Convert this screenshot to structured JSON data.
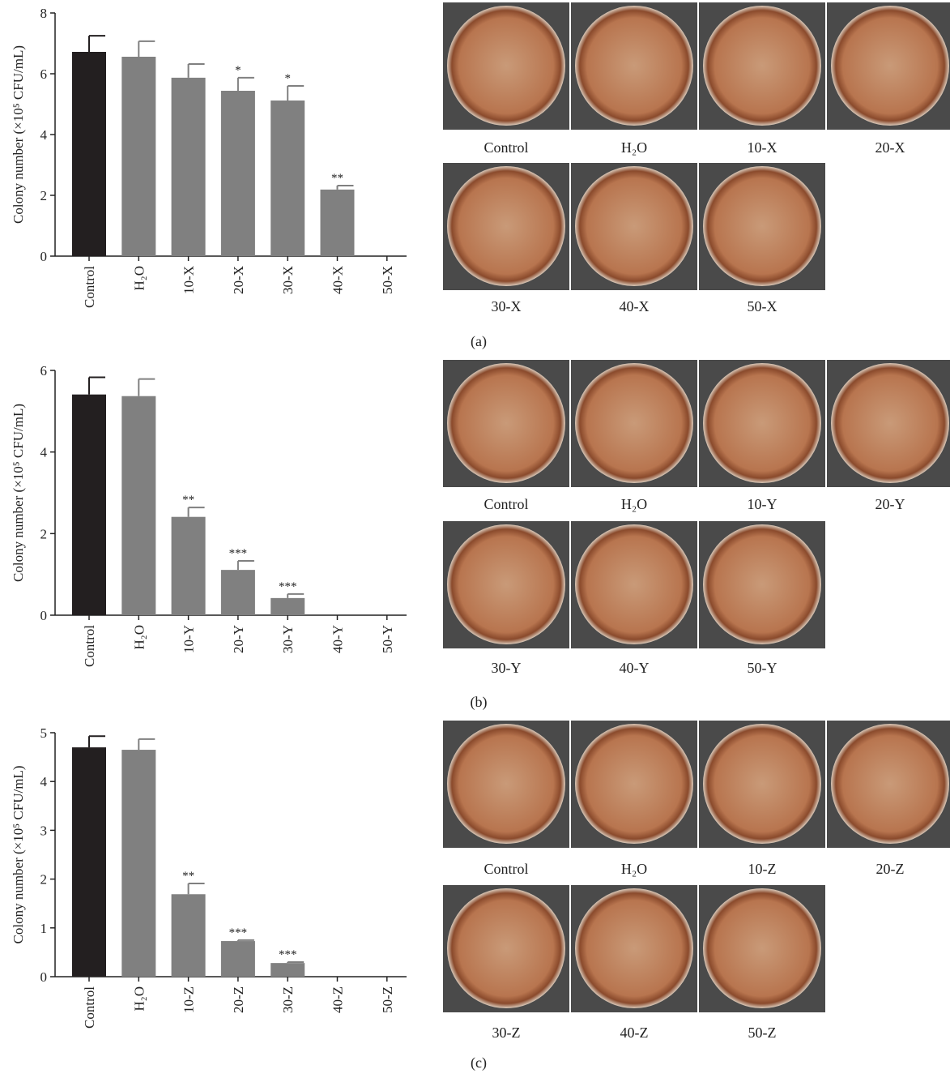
{
  "chart_data": [
    {
      "type": "bar",
      "ylabel": "Colony number (×10⁵ CFU/mL)",
      "categories": [
        "Control",
        "H₂O",
        "10-X",
        "20-X",
        "30-X",
        "40-X",
        "50-X"
      ],
      "values": [
        6.72,
        6.56,
        5.87,
        5.44,
        5.12,
        2.19,
        0
      ],
      "errors": [
        0.53,
        0.51,
        0.45,
        0.43,
        0.48,
        0.13,
        null
      ],
      "annotations": [
        null,
        null,
        null,
        "*",
        "*",
        "**",
        null
      ],
      "colors": [
        "#231f20",
        "#808080",
        "#808080",
        "#808080",
        "#808080",
        "#808080",
        "#808080"
      ],
      "ylim": [
        0,
        8
      ],
      "yticks": [
        0,
        2,
        4,
        6,
        8
      ]
    },
    {
      "type": "bar",
      "ylabel": "Colony number (×10⁵ CFU/mL)",
      "categories": [
        "Control",
        "H₂O",
        "10-Y",
        "20-Y",
        "30-Y",
        "40-Y",
        "50-Y"
      ],
      "values": [
        5.41,
        5.37,
        2.41,
        1.11,
        0.42,
        0,
        0
      ],
      "errors": [
        0.42,
        0.42,
        0.23,
        0.22,
        0.1,
        null,
        null
      ],
      "annotations": [
        null,
        null,
        "**",
        "***",
        "***",
        null,
        null
      ],
      "colors": [
        "#231f20",
        "#808080",
        "#808080",
        "#808080",
        "#808080",
        "#808080",
        "#808080"
      ],
      "ylim": [
        0,
        6
      ],
      "yticks": [
        0,
        2,
        4,
        6
      ]
    },
    {
      "type": "bar",
      "ylabel": "Colony number (×10⁵ CFU/mL)",
      "categories": [
        "Control",
        "H₂O",
        "10-Z",
        "20-Z",
        "30-Z",
        "40-Z",
        "50-Z"
      ],
      "values": [
        4.7,
        4.65,
        1.69,
        0.73,
        0.28,
        0,
        0
      ],
      "errors": [
        0.23,
        0.22,
        0.22,
        0.02,
        0.02,
        null,
        null
      ],
      "annotations": [
        null,
        null,
        "**",
        "***",
        "***",
        null,
        null
      ],
      "colors": [
        "#231f20",
        "#808080",
        "#808080",
        "#808080",
        "#808080",
        "#808080",
        "#808080"
      ],
      "ylim": [
        0,
        5
      ],
      "yticks": [
        0,
        1,
        2,
        3,
        4,
        5
      ]
    }
  ],
  "photo_panels": [
    {
      "label": "(a)",
      "captions": [
        "Control",
        "H₂O",
        "10-X",
        "20-X",
        "30-X",
        "40-X",
        "50-X"
      ]
    },
    {
      "label": "(b)",
      "captions": [
        "Control",
        "H₂O",
        "10-Y",
        "20-Y",
        "30-Y",
        "40-Y",
        "50-Y"
      ]
    },
    {
      "label": "(c)",
      "captions": [
        "Control",
        "H₂O",
        "10-Z",
        "20-Z",
        "30-Z",
        "40-Z",
        "50-Z"
      ]
    }
  ]
}
